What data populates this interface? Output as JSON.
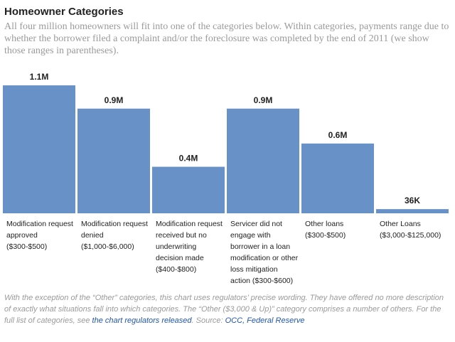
{
  "title": "Homeowner Categories",
  "subtitle": "All four million homeowners will fit into one of the categories below. Within categories, payments range due to whether the borrower filed a complaint and/or the foreclosure was completed by the end of 2011 (we show those ranges in parentheses).",
  "colors": {
    "bar": "#6891c8",
    "text": "#222222",
    "muted": "#9a9a9a",
    "link": "#2255aa"
  },
  "chart_data": {
    "type": "bar",
    "categories": [
      "Modification request approved ($300-$500)",
      "Modification request denied ($1,000-$6,000)",
      "Modification request received but no underwriting decision made ($400-$800)",
      "Servicer did not engage with borrower in a loan modification or other loss mitigation action ($300-$600)",
      "Other loans ($300-$500)",
      "Other Loans ($3,000-$125,000)"
    ],
    "values": [
      1.1,
      0.9,
      0.4,
      0.9,
      0.6,
      0.036
    ],
    "data_labels": [
      "1.1M",
      "0.9M",
      "0.4M",
      "0.9M",
      "0.6M",
      "36K"
    ],
    "unit": "million homeowners",
    "grid": false,
    "legend": "none"
  },
  "footnote": {
    "text": "With the exception of the “Other” categories, this chart uses regulators’ precise wording. They have offered no more description of exactly what situations fall into which categories. The “Other ($3,000 & Up)” category comprises a number of others. For the full list of categories, see ",
    "link_text": "the chart regulators released",
    "source_prefix": ". Source: ",
    "source_link": "OCC, Federal Reserve"
  }
}
